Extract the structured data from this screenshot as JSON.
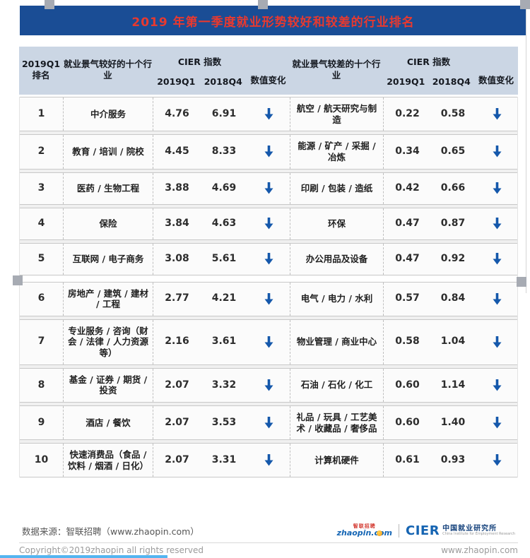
{
  "title": "2019 年第一季度就业形势较好和较差的行业排名",
  "table": {
    "header": {
      "rank_line1": "2019Q1",
      "rank_line2": "排名",
      "good_industry": "就业景气较好的十个行业",
      "bad_industry": "就业景气较差的十个行业",
      "cier": "CIER 指数",
      "q1": "2019Q1",
      "q4": "2018Q4",
      "change": "数值变化"
    },
    "down_arrow": "↓"
  },
  "chart_data": {
    "type": "table",
    "title": "2019 年第一季度就业形势较好和较差的行业排名",
    "columns": [
      "2019Q1 排名",
      "就业景气较好的十个行业",
      "CIER指数 2019Q1",
      "CIER指数 2018Q4",
      "数值变化",
      "就业景气较差的十个行业",
      "CIER指数 2019Q1",
      "CIER指数 2018Q4",
      "数值变化"
    ],
    "column_groups": [
      {
        "label": "CIER 指数",
        "columns": [
          2,
          3
        ]
      },
      {
        "label": "CIER 指数",
        "columns": [
          6,
          7
        ]
      }
    ],
    "rows": [
      [
        "1",
        "中介服务",
        "4.76",
        "6.91",
        "↓",
        "航空 / 航天研究与制造",
        "0.22",
        "0.58",
        "↓"
      ],
      [
        "2",
        "教育 / 培训 / 院校",
        "4.45",
        "8.33",
        "↓",
        "能源 / 矿产 / 采掘 / 冶炼",
        "0.34",
        "0.65",
        "↓"
      ],
      [
        "3",
        "医药 / 生物工程",
        "3.88",
        "4.69",
        "↓",
        "印刷 / 包装 / 造纸",
        "0.42",
        "0.66",
        "↓"
      ],
      [
        "4",
        "保险",
        "3.84",
        "4.63",
        "↓",
        "环保",
        "0.47",
        "0.87",
        "↓"
      ],
      [
        "5",
        "互联网 / 电子商务",
        "3.08",
        "5.61",
        "↓",
        "办公用品及设备",
        "0.47",
        "0.92",
        "↓"
      ],
      [
        "6",
        "房地产 / 建筑 / 建材 / 工程",
        "2.77",
        "4.21",
        "↓",
        "电气 / 电力 / 水利",
        "0.57",
        "0.84",
        "↓"
      ],
      [
        "7",
        "专业服务 / 咨询（财会 / 法律 / 人力资源等）",
        "2.16",
        "3.61",
        "↓",
        "物业管理 / 商业中心",
        "0.58",
        "1.04",
        "↓"
      ],
      [
        "8",
        "基金 / 证券 / 期货 / 投资",
        "2.07",
        "3.32",
        "↓",
        "石油 / 石化 / 化工",
        "0.60",
        "1.14",
        "↓"
      ],
      [
        "9",
        "酒店 / 餐饮",
        "2.07",
        "3.53",
        "↓",
        "礼品 / 玩具 / 工艺美术 / 收藏品 / 奢侈品",
        "0.60",
        "1.40",
        "↓"
      ],
      [
        "10",
        "快速消费品（食品 / 饮料 / 烟酒 / 日化）",
        "2.07",
        "3.31",
        "↓",
        "计算机硬件",
        "0.61",
        "0.93",
        "↓"
      ]
    ]
  },
  "footer": {
    "source": "数据来源：智联招聘（www.zhaopin.com）",
    "zhaopin_logo_cn": "智联招聘",
    "zhaopin_logo_main": "zhaopin.com",
    "cier_logo": "CIER",
    "cier_cn": "中国就业研究所",
    "cier_en": "China Institute for Employment Research",
    "copyright": "Copyright©2019zhaopin all rights reserved",
    "website": "www.zhaopin.com"
  },
  "colors": {
    "banner_bg": "#1a4d95",
    "title_red": "#e8392f",
    "header_bg": "#cbd6e4",
    "arrow_blue": "#1558ab",
    "cyan_line": "#54b5f0"
  }
}
